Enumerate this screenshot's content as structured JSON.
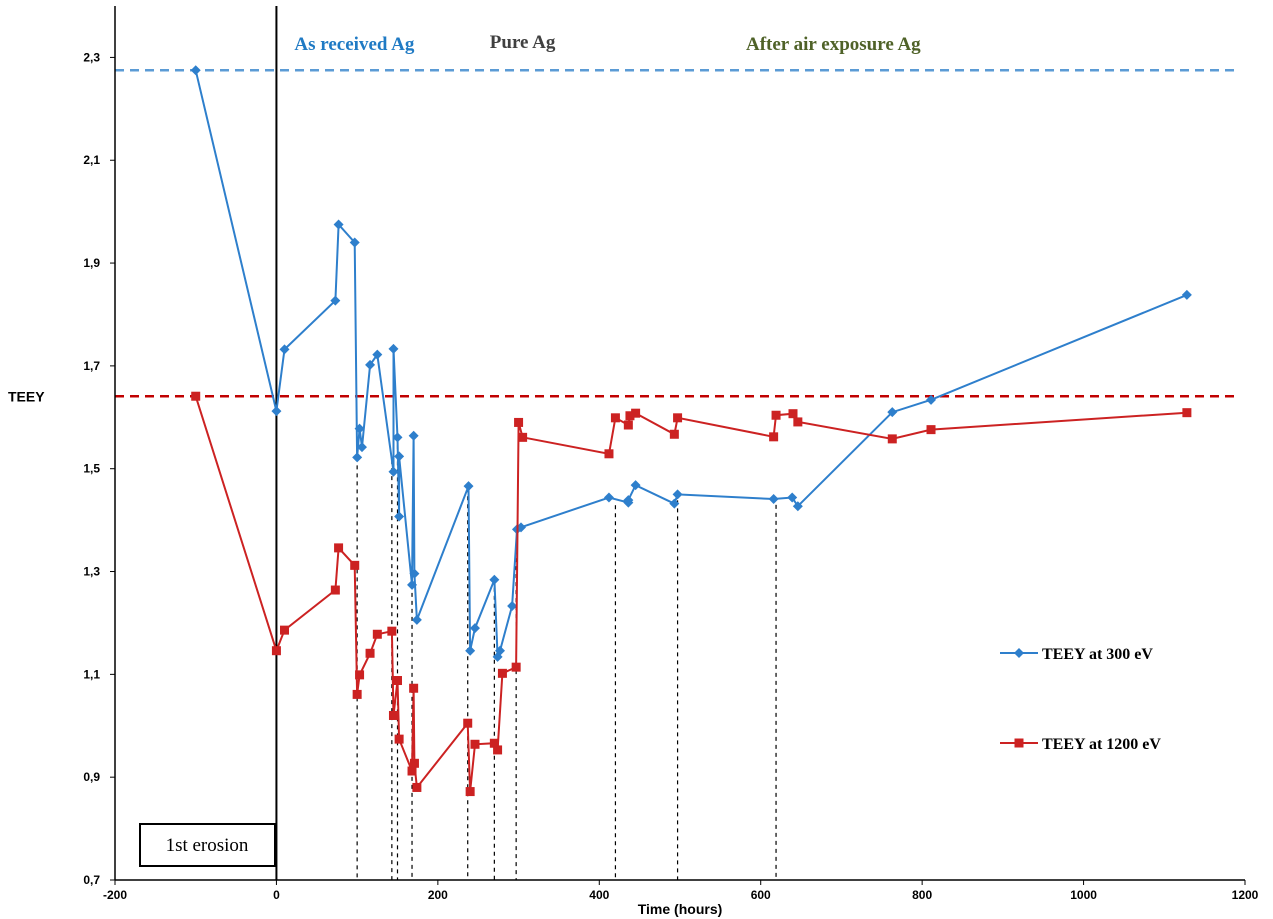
{
  "chart_data": {
    "type": "line",
    "ylabel": "TEEY",
    "xlabel": "Time (hours)",
    "xlim": [
      -200,
      1200
    ],
    "ylim": [
      0.7,
      2.4
    ],
    "x_ticks": [
      -200,
      0,
      200,
      400,
      600,
      800,
      1000,
      1200
    ],
    "x_tick_labels": [
      "-200",
      "0",
      "200",
      "400",
      "600",
      "800",
      "1000",
      "1200"
    ],
    "y_ticks": [
      0.7,
      0.9,
      1.1,
      1.3,
      1.5,
      1.7,
      1.9,
      2.1,
      2.3
    ],
    "y_tick_labels": [
      "0,7",
      "0,9",
      "1,1",
      "1,3",
      "1,5",
      "1,7",
      "1,9",
      "2,1",
      "2,3"
    ],
    "grid": false,
    "legend_position": "right",
    "series": [
      {
        "name": "TEEY at 300 eV",
        "color": "#2E7FCC",
        "marker": "diamond",
        "x": [
          -100,
          0,
          10,
          73,
          77,
          97,
          100,
          103,
          106,
          116,
          125,
          145,
          145,
          150,
          152,
          152,
          168,
          170,
          171,
          174,
          238,
          240,
          246,
          270,
          274,
          277,
          292,
          298,
          303,
          412,
          436,
          436,
          445,
          493,
          497,
          616,
          639,
          646,
          763,
          811,
          1128
        ],
        "y": [
          2.275,
          1.612,
          1.732,
          1.827,
          1.975,
          1.94,
          1.522,
          1.578,
          1.542,
          1.702,
          1.722,
          1.494,
          1.733,
          1.561,
          1.407,
          1.524,
          1.274,
          1.564,
          1.296,
          1.206,
          1.466,
          1.146,
          1.19,
          1.284,
          1.134,
          1.146,
          1.233,
          1.382,
          1.386,
          1.444,
          1.434,
          1.439,
          1.468,
          1.432,
          1.45,
          1.441,
          1.444,
          1.427,
          1.61,
          1.634,
          1.838
        ]
      },
      {
        "name": "TEEY at 1200 eV",
        "color": "#CC2222",
        "marker": "square",
        "x": [
          -100,
          0,
          10,
          73,
          77,
          97,
          100,
          103,
          116,
          125,
          143,
          145,
          150,
          152,
          168,
          170,
          171,
          174,
          237,
          240,
          246,
          270,
          274,
          280,
          297,
          300,
          305,
          412,
          420,
          436,
          438,
          445,
          493,
          497,
          616,
          619,
          640,
          646,
          763,
          811,
          1128
        ],
        "y": [
          1.641,
          1.146,
          1.186,
          1.264,
          1.346,
          1.312,
          1.061,
          1.099,
          1.141,
          1.178,
          1.184,
          1.02,
          1.088,
          0.974,
          0.912,
          1.073,
          0.927,
          0.88,
          1.005,
          0.872,
          0.964,
          0.966,
          0.953,
          1.102,
          1.114,
          1.59,
          1.561,
          1.529,
          1.599,
          1.585,
          1.603,
          1.608,
          1.567,
          1.599,
          1.562,
          1.604,
          1.607,
          1.591,
          1.558,
          1.576,
          1.609
        ]
      }
    ],
    "reference_lines": [
      {
        "y": 2.275,
        "color": "#5B9BD5",
        "style": "dashed"
      },
      {
        "y": 1.641,
        "color": "#C00000",
        "style": "dashed"
      }
    ],
    "vertical_markers": [
      0
    ],
    "dashed_drops": [
      100,
      143,
      150,
      168,
      237,
      270,
      297,
      420,
      497,
      619
    ],
    "annotations": [
      {
        "text": "As received Ag",
        "x": 0,
        "color": "#1F7AC4"
      },
      {
        "text": "Pure Ag",
        "x": 305,
        "color": "#404040"
      },
      {
        "text": "After air exposure Ag",
        "x": 690,
        "color": "#4F6228"
      },
      {
        "text": "1st erosion",
        "x": -80,
        "color": "#000000"
      }
    ]
  }
}
